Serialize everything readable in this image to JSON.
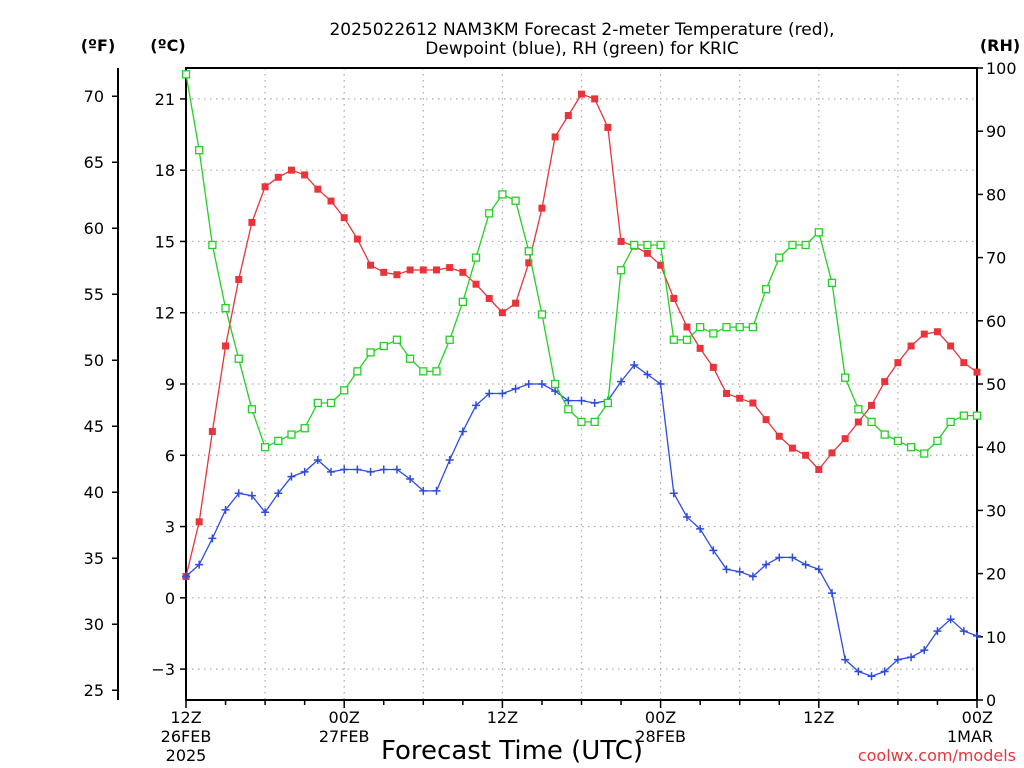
{
  "chart_data": {
    "type": "line",
    "title_line1": "2025022612 NAM3KM Forecast 2-meter Temperature (red),",
    "title_line2": "Dewpoint (blue), RH (green) for KRIC",
    "unit_left_outer": "(ºF)",
    "unit_left_inner": "(ºC)",
    "unit_right": "(RH)",
    "xlabel": "Forecast Time (UTC)",
    "credit": "coolwx.com/models",
    "x_ticks": [
      {
        "h": 0,
        "l1": "12Z",
        "l2": "26FEB",
        "l3": "2025"
      },
      {
        "h": 12,
        "l1": "00Z",
        "l2": "27FEB",
        "l3": ""
      },
      {
        "h": 24,
        "l1": "12Z",
        "l2": "",
        "l3": ""
      },
      {
        "h": 36,
        "l1": "00Z",
        "l2": "28FEB",
        "l3": ""
      },
      {
        "h": 48,
        "l1": "12Z",
        "l2": "",
        "l3": ""
      },
      {
        "h": 60,
        "l1": "00Z",
        "l2": "1MAR",
        "l3": ""
      }
    ],
    "x_range_hours": [
      0,
      60
    ],
    "y_celsius_range": [
      -4.3,
      22.3
    ],
    "celsius_ticks": [
      -3,
      0,
      3,
      6,
      9,
      12,
      15,
      18,
      21
    ],
    "fahrenheit_ticks": [
      25,
      30,
      35,
      40,
      45,
      50,
      55,
      60,
      65,
      70
    ],
    "rh_range": [
      0,
      100
    ],
    "rh_ticks": [
      0,
      10,
      20,
      30,
      40,
      50,
      60,
      70,
      80,
      90,
      100
    ],
    "grid": true,
    "series": [
      {
        "name": "Temperature",
        "color": "#e8343a",
        "marker": "filled-square",
        "axis": "celsius",
        "values": [
          0.9,
          3.2,
          7.0,
          10.6,
          13.4,
          15.8,
          17.3,
          17.7,
          18.0,
          17.8,
          17.2,
          16.7,
          16.0,
          15.1,
          14.0,
          13.7,
          13.6,
          13.8,
          13.8,
          13.8,
          13.9,
          13.7,
          13.2,
          12.6,
          12.0,
          12.4,
          14.1,
          16.4,
          19.4,
          20.3,
          21.2,
          21.0,
          19.8,
          15.0,
          14.8,
          14.5,
          14.0,
          12.6,
          11.4,
          10.5,
          9.7,
          8.6,
          8.4,
          8.2,
          7.5,
          6.8,
          6.3,
          6.0,
          5.4,
          6.1,
          6.7,
          7.4,
          8.1,
          9.1,
          9.9,
          10.6,
          11.1,
          11.2,
          10.6,
          9.9,
          9.5
        ]
      },
      {
        "name": "Dewpoint",
        "color": "#2d4be0",
        "marker": "plus",
        "axis": "celsius",
        "values": [
          0.9,
          1.4,
          2.5,
          3.7,
          4.4,
          4.3,
          3.6,
          4.4,
          5.1,
          5.3,
          5.8,
          5.3,
          5.4,
          5.4,
          5.3,
          5.4,
          5.4,
          5.0,
          4.5,
          4.5,
          5.8,
          7.0,
          8.1,
          8.6,
          8.6,
          8.8,
          9.0,
          9.0,
          8.7,
          8.3,
          8.3,
          8.2,
          8.3,
          9.1,
          9.8,
          9.4,
          9.0,
          4.4,
          3.4,
          2.9,
          2.0,
          1.2,
          1.1,
          0.9,
          1.4,
          1.7,
          1.7,
          1.4,
          1.2,
          0.2,
          -2.6,
          -3.1,
          -3.3,
          -3.1,
          -2.6,
          -2.5,
          -2.2,
          -1.4,
          -0.9,
          -1.4,
          -1.6
        ]
      },
      {
        "name": "RH",
        "color": "#22d122",
        "marker": "open-square",
        "axis": "rh",
        "values": [
          99,
          87,
          72,
          62,
          54,
          46,
          40,
          41,
          42,
          43,
          47,
          47,
          49,
          52,
          55,
          56,
          57,
          54,
          52,
          52,
          57,
          63,
          70,
          77,
          80,
          79,
          71,
          61,
          50,
          46,
          44,
          44,
          47,
          68,
          72,
          72,
          72,
          57,
          57,
          59,
          58,
          59,
          59,
          59,
          65,
          70,
          72,
          72,
          74,
          66,
          51,
          46,
          44,
          42,
          41,
          40,
          39,
          41,
          44,
          45,
          45
        ]
      }
    ]
  }
}
